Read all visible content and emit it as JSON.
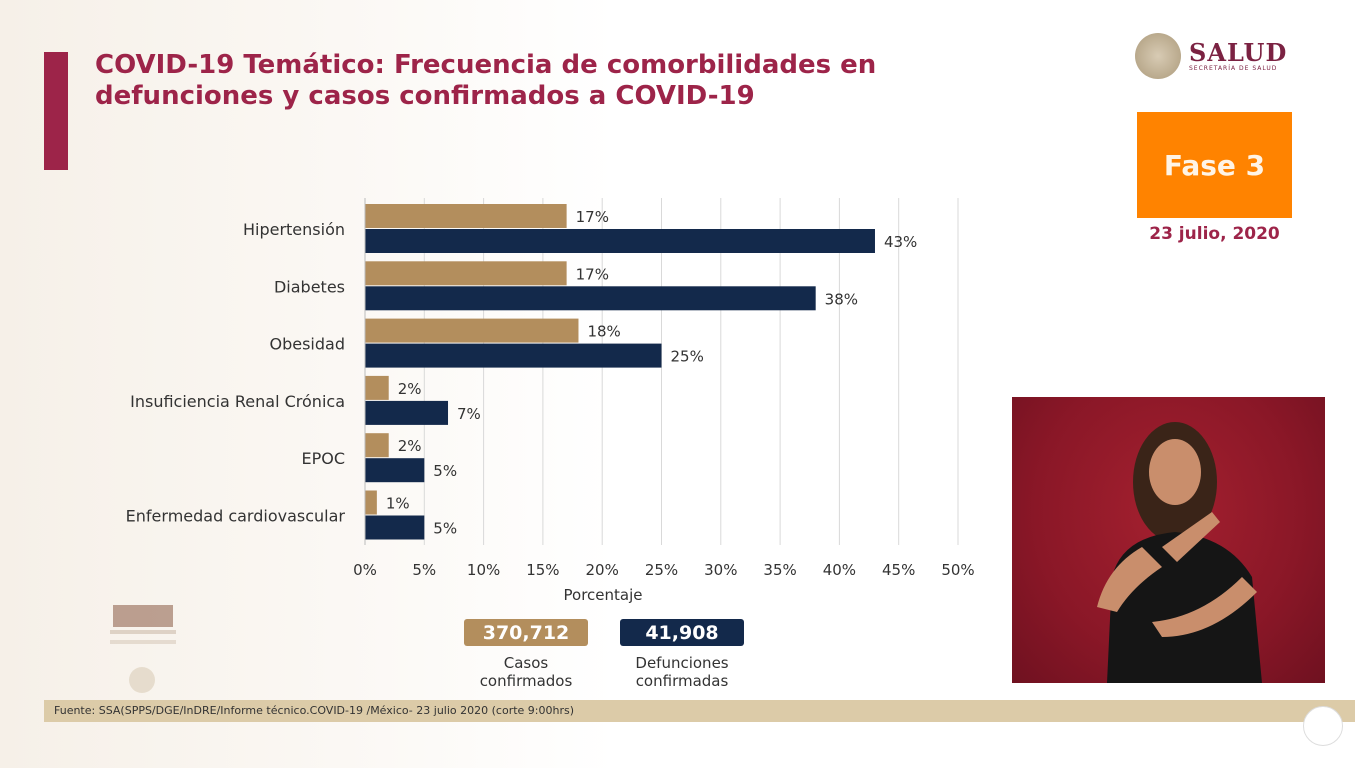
{
  "header": {
    "title": "COVID-19 Temático: Frecuencia de comorbilidades en defunciones y casos confirmados a COVID-19"
  },
  "logo": {
    "name": "SALUD",
    "subtitle": "SECRETARÍA DE SALUD"
  },
  "phase": {
    "label": "Fase 3",
    "date": "23 julio, 2020",
    "color": "#ff8300"
  },
  "legend": [
    {
      "value": "370,712",
      "label": "Casos confirmados",
      "color": "#b38e5d"
    },
    {
      "value": "41,908",
      "label": "Defunciones confirmadas",
      "color": "#13294b"
    }
  ],
  "footer": {
    "source": "Fuente: SSA(SPPS/DGE/InDRE/Informe técnico.COVID-19 /México- 23 julio 2020 (corte 9:00hrs)"
  },
  "chart_data": {
    "type": "bar",
    "orientation": "horizontal",
    "categories": [
      "Hipertensión",
      "Diabetes",
      "Obesidad",
      "Insuficiencia Renal Crónica",
      "EPOC",
      "Enfermedad cardiovascular"
    ],
    "series": [
      {
        "name": "Casos confirmados",
        "color": "#b38e5d",
        "values": [
          17,
          17,
          18,
          2,
          2,
          1
        ]
      },
      {
        "name": "Defunciones confirmadas",
        "color": "#13294b",
        "values": [
          43,
          38,
          25,
          7,
          5,
          5
        ]
      }
    ],
    "xlabel": "Porcentaje",
    "xlim": [
      0,
      50
    ],
    "xticks": [
      "0%",
      "5%",
      "10%",
      "15%",
      "20%",
      "25%",
      "30%",
      "35%",
      "40%",
      "45%",
      "50%"
    ],
    "grid": "vertical",
    "legend_position": "bottom"
  }
}
